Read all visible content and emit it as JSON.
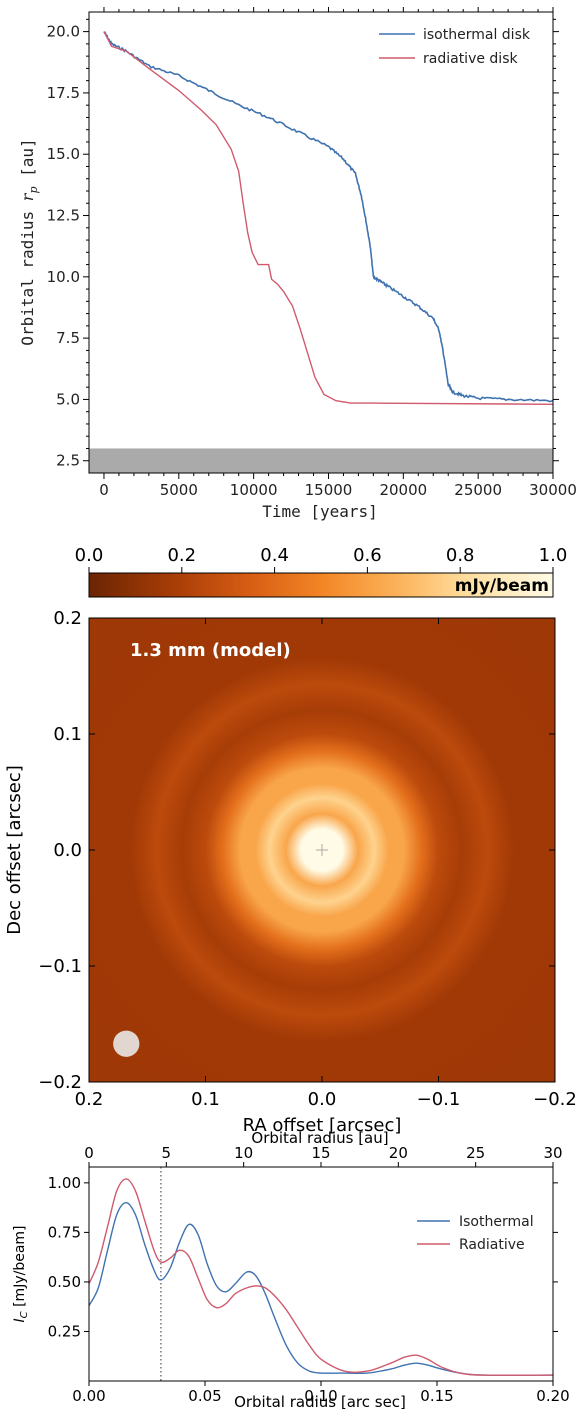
{
  "chart_data": [
    {
      "type": "line",
      "xlabel": "Time [years]",
      "ylabel": "Orbital radius r_p [au]",
      "xlim": [
        -1000,
        30000
      ],
      "ylim": [
        2.0,
        20.8
      ],
      "xticks": [
        0,
        5000,
        10000,
        15000,
        20000,
        25000,
        30000
      ],
      "yticks": [
        2.5,
        5.0,
        7.5,
        10.0,
        12.5,
        15.0,
        17.5,
        20.0
      ],
      "shaded_band": {
        "y_from": 2.0,
        "y_to": 3.0,
        "color": "#aaaaaa"
      },
      "legend_position": "top-right",
      "series": [
        {
          "name": "isothermal disk",
          "color": "#3f72b0",
          "x": [
            0,
            500,
            1500,
            3000,
            5000,
            7000,
            9000,
            11000,
            13000,
            15000,
            16000,
            16800,
            17200,
            17500,
            17800,
            18000,
            18500,
            19000,
            20000,
            21000,
            22000,
            22400,
            22700,
            23000,
            23300,
            24000,
            25000,
            27000,
            30000
          ],
          "y": [
            20.0,
            19.5,
            19.2,
            18.6,
            18.2,
            17.6,
            17.0,
            16.5,
            15.9,
            15.3,
            14.8,
            14.2,
            13.3,
            12.3,
            11.2,
            10.0,
            9.8,
            9.6,
            9.2,
            8.8,
            8.3,
            7.8,
            6.8,
            5.6,
            5.3,
            5.15,
            5.05,
            5.0,
            4.95
          ]
        },
        {
          "name": "radiative disk",
          "color": "#d05a6e",
          "x": [
            0,
            500,
            1500,
            3000,
            5000,
            6500,
            7500,
            8500,
            9000,
            9300,
            9600,
            9900,
            10300,
            11000,
            11200,
            11600,
            12000,
            12600,
            13100,
            13600,
            14100,
            14700,
            15500,
            16500,
            18000,
            30000
          ],
          "y": [
            20.0,
            19.4,
            19.2,
            18.5,
            17.6,
            16.8,
            16.2,
            15.2,
            14.3,
            13.0,
            11.8,
            11.0,
            10.5,
            10.5,
            9.9,
            9.7,
            9.4,
            8.8,
            7.9,
            6.9,
            5.9,
            5.2,
            4.95,
            4.85,
            4.85,
            4.8
          ]
        }
      ]
    },
    {
      "type": "heatmap",
      "title": "1.3 mm (model)",
      "xlabel": "RA offset [arcsec]",
      "ylabel": "Dec offset [arcsec]",
      "xlim": [
        0.2,
        -0.2
      ],
      "ylim": [
        -0.2,
        0.2
      ],
      "xticks": [
        0.2,
        0.1,
        0.0,
        -0.1,
        -0.2
      ],
      "yticks": [
        0.2,
        0.1,
        0.0,
        -0.1,
        -0.2
      ],
      "colorbar": {
        "label": "mJy/beam",
        "range": [
          0.0,
          1.0
        ],
        "ticks": [
          0.0,
          0.2,
          0.4,
          0.6,
          0.8,
          1.0
        ],
        "position": "top"
      },
      "rings": [
        {
          "radius": 0.0,
          "intensity": 1.0
        },
        {
          "radius": 0.018,
          "intensity": 1.0
        },
        {
          "radius": 0.031,
          "intensity": 0.62
        },
        {
          "radius": 0.045,
          "intensity": 0.78
        },
        {
          "radius": 0.057,
          "intensity": 0.62
        },
        {
          "radius": 0.07,
          "intensity": 0.62
        },
        {
          "radius": 0.085,
          "intensity": 0.42
        },
        {
          "radius": 0.1,
          "intensity": 0.25
        },
        {
          "radius": 0.12,
          "intensity": 0.18
        },
        {
          "radius": 0.142,
          "intensity": 0.25
        },
        {
          "radius": 0.165,
          "intensity": 0.16
        },
        {
          "radius": 0.29,
          "intensity": 0.15
        }
      ],
      "center_marker": "+",
      "beam": {
        "ra": 0.168,
        "dec": -0.167,
        "diameter": 0.02,
        "color": "#e2d6d1"
      },
      "colormap": [
        "#6b2503",
        "#a33a06",
        "#d45a12",
        "#f38525",
        "#fcb35a",
        "#ffe2a6",
        "#fffbe6"
      ]
    },
    {
      "type": "line",
      "xlabel": "Orbital radius [arc sec]",
      "x2label": "Orbital radius [au]",
      "ylabel": "I_C [mJy/beam]",
      "xlim": [
        0.0,
        0.2
      ],
      "ylim": [
        0.0,
        1.08
      ],
      "xticks": [
        0.0,
        0.05,
        0.1,
        0.15,
        0.2
      ],
      "x2ticks": [
        0,
        5,
        10,
        15,
        20,
        25,
        30
      ],
      "yticks": [
        0.25,
        0.5,
        0.75,
        1.0
      ],
      "vline_x": 0.031,
      "legend_position": "top-right",
      "series": [
        {
          "name": "Isothermal",
          "color": "#3f72b0",
          "x": [
            0.0,
            0.004,
            0.008,
            0.012,
            0.016,
            0.02,
            0.024,
            0.028,
            0.031,
            0.035,
            0.039,
            0.043,
            0.047,
            0.051,
            0.055,
            0.059,
            0.063,
            0.068,
            0.072,
            0.076,
            0.08,
            0.085,
            0.09,
            0.095,
            0.1,
            0.11,
            0.12,
            0.13,
            0.136,
            0.141,
            0.146,
            0.152,
            0.16,
            0.17,
            0.2
          ],
          "y": [
            0.38,
            0.47,
            0.66,
            0.84,
            0.9,
            0.84,
            0.69,
            0.56,
            0.51,
            0.57,
            0.7,
            0.79,
            0.74,
            0.59,
            0.48,
            0.45,
            0.49,
            0.55,
            0.53,
            0.44,
            0.32,
            0.18,
            0.09,
            0.05,
            0.04,
            0.04,
            0.04,
            0.06,
            0.08,
            0.09,
            0.08,
            0.06,
            0.04,
            0.03,
            0.03
          ]
        },
        {
          "name": "Radiative",
          "color": "#d05a6e",
          "x": [
            0.0,
            0.004,
            0.008,
            0.012,
            0.016,
            0.02,
            0.024,
            0.028,
            0.031,
            0.035,
            0.039,
            0.043,
            0.047,
            0.051,
            0.055,
            0.059,
            0.063,
            0.068,
            0.072,
            0.076,
            0.08,
            0.085,
            0.09,
            0.095,
            0.1,
            0.11,
            0.12,
            0.13,
            0.136,
            0.141,
            0.146,
            0.152,
            0.16,
            0.17,
            0.2
          ],
          "y": [
            0.49,
            0.6,
            0.78,
            0.96,
            1.02,
            0.96,
            0.81,
            0.66,
            0.6,
            0.62,
            0.66,
            0.63,
            0.52,
            0.41,
            0.37,
            0.39,
            0.44,
            0.47,
            0.48,
            0.47,
            0.43,
            0.36,
            0.27,
            0.18,
            0.11,
            0.05,
            0.05,
            0.09,
            0.12,
            0.13,
            0.11,
            0.07,
            0.04,
            0.03,
            0.03
          ]
        }
      ]
    }
  ]
}
